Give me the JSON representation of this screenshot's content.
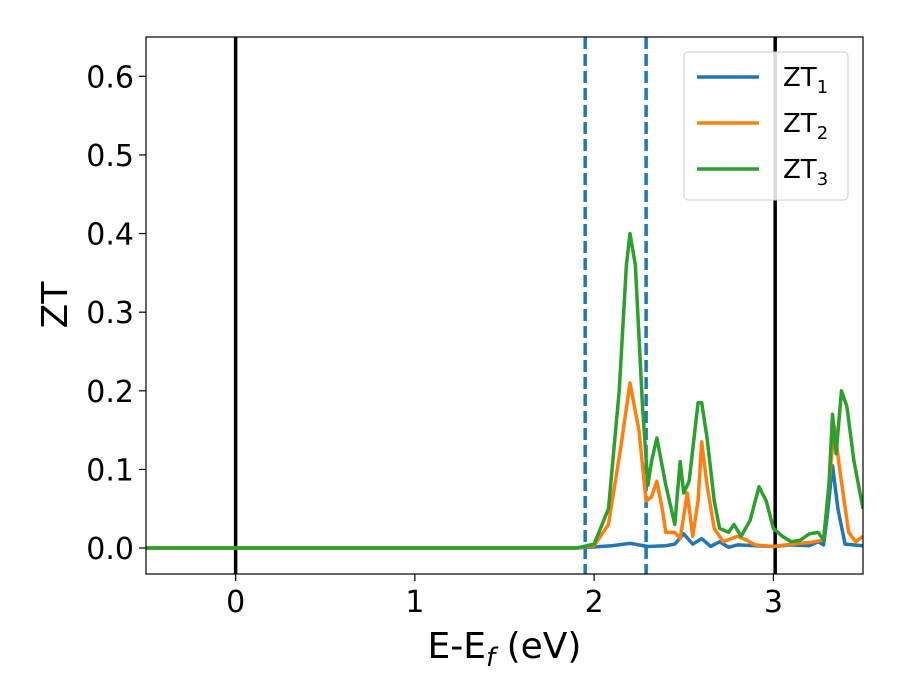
{
  "chart_data": {
    "type": "line",
    "title": "",
    "xlabel": {
      "main": "E-E",
      "sub": "f",
      "unit": " (eV)"
    },
    "ylabel": "ZT",
    "xlim": [
      -0.5,
      3.5
    ],
    "ylim": [
      -0.033,
      0.65
    ],
    "xticks": [
      0,
      1,
      2,
      3
    ],
    "xtick_labels": [
      "0",
      "1",
      "2",
      "3"
    ],
    "yticks": [
      0.0,
      0.1,
      0.2,
      0.3,
      0.4,
      0.5,
      0.6
    ],
    "ytick_labels": [
      "0.0",
      "0.1",
      "0.2",
      "0.3",
      "0.4",
      "0.5",
      "0.6"
    ],
    "grid": false,
    "legend_position": "top-right",
    "vertical_lines": [
      {
        "x": 0.0,
        "style": "solid",
        "color": "#000000"
      },
      {
        "x": 3.01,
        "style": "solid",
        "color": "#000000"
      },
      {
        "x": 1.95,
        "style": "dashed",
        "color": "#1f77b4"
      },
      {
        "x": 2.29,
        "style": "dashed",
        "color": "#1f77b4"
      }
    ],
    "series": [
      {
        "name": "ZT",
        "sub": "1",
        "color": "#1f77b4",
        "points": [
          [
            -0.5,
            0
          ],
          [
            1.9,
            0
          ],
          [
            2.1,
            0.003
          ],
          [
            2.2,
            0.006
          ],
          [
            2.3,
            0.002
          ],
          [
            2.4,
            0.003
          ],
          [
            2.45,
            0.005
          ],
          [
            2.5,
            0.018
          ],
          [
            2.55,
            0.005
          ],
          [
            2.6,
            0.012
          ],
          [
            2.65,
            0.002
          ],
          [
            2.7,
            0.008
          ],
          [
            2.75,
            0.001
          ],
          [
            2.8,
            0.004
          ],
          [
            2.9,
            0.003
          ],
          [
            3.0,
            0.002
          ],
          [
            3.1,
            0.004
          ],
          [
            3.2,
            0.003
          ],
          [
            3.25,
            0.008
          ],
          [
            3.28,
            0.004
          ],
          [
            3.3,
            0.04
          ],
          [
            3.33,
            0.105
          ],
          [
            3.36,
            0.05
          ],
          [
            3.4,
            0.005
          ],
          [
            3.5,
            0.003
          ]
        ]
      },
      {
        "name": "ZT",
        "sub": "2",
        "color": "#ff7f0e",
        "points": [
          [
            -0.5,
            0
          ],
          [
            1.9,
            0
          ],
          [
            2.0,
            0.003
          ],
          [
            2.08,
            0.03
          ],
          [
            2.15,
            0.13
          ],
          [
            2.2,
            0.21
          ],
          [
            2.25,
            0.15
          ],
          [
            2.29,
            0.06
          ],
          [
            2.32,
            0.065
          ],
          [
            2.35,
            0.085
          ],
          [
            2.38,
            0.05
          ],
          [
            2.4,
            0.02
          ],
          [
            2.45,
            0.02
          ],
          [
            2.48,
            0.012
          ],
          [
            2.52,
            0.07
          ],
          [
            2.55,
            0.015
          ],
          [
            2.58,
            0.06
          ],
          [
            2.6,
            0.135
          ],
          [
            2.63,
            0.08
          ],
          [
            2.67,
            0.025
          ],
          [
            2.72,
            0.008
          ],
          [
            2.8,
            0.015
          ],
          [
            2.85,
            0.01
          ],
          [
            2.9,
            0.004
          ],
          [
            3.0,
            0.002
          ],
          [
            3.1,
            0.005
          ],
          [
            3.2,
            0.007
          ],
          [
            3.28,
            0.01
          ],
          [
            3.31,
            0.08
          ],
          [
            3.34,
            0.155
          ],
          [
            3.37,
            0.1
          ],
          [
            3.42,
            0.02
          ],
          [
            3.46,
            0.008
          ],
          [
            3.5,
            0.015
          ]
        ]
      },
      {
        "name": "ZT",
        "sub": "3",
        "color": "#2ca02c",
        "points": [
          [
            -0.5,
            0
          ],
          [
            1.9,
            0
          ],
          [
            2.0,
            0.005
          ],
          [
            2.08,
            0.05
          ],
          [
            2.14,
            0.2
          ],
          [
            2.18,
            0.36
          ],
          [
            2.2,
            0.4
          ],
          [
            2.23,
            0.36
          ],
          [
            2.27,
            0.18
          ],
          [
            2.3,
            0.08
          ],
          [
            2.32,
            0.11
          ],
          [
            2.35,
            0.14
          ],
          [
            2.4,
            0.08
          ],
          [
            2.45,
            0.03
          ],
          [
            2.48,
            0.11
          ],
          [
            2.5,
            0.07
          ],
          [
            2.53,
            0.085
          ],
          [
            2.58,
            0.185
          ],
          [
            2.6,
            0.185
          ],
          [
            2.63,
            0.14
          ],
          [
            2.67,
            0.06
          ],
          [
            2.7,
            0.025
          ],
          [
            2.75,
            0.02
          ],
          [
            2.78,
            0.03
          ],
          [
            2.82,
            0.015
          ],
          [
            2.87,
            0.035
          ],
          [
            2.92,
            0.078
          ],
          [
            2.96,
            0.06
          ],
          [
            3.0,
            0.025
          ],
          [
            3.05,
            0.015
          ],
          [
            3.1,
            0.008
          ],
          [
            3.15,
            0.01
          ],
          [
            3.2,
            0.018
          ],
          [
            3.25,
            0.02
          ],
          [
            3.28,
            0.01
          ],
          [
            3.31,
            0.08
          ],
          [
            3.33,
            0.17
          ],
          [
            3.35,
            0.12
          ],
          [
            3.38,
            0.2
          ],
          [
            3.41,
            0.18
          ],
          [
            3.45,
            0.11
          ],
          [
            3.5,
            0.05
          ]
        ]
      }
    ]
  }
}
